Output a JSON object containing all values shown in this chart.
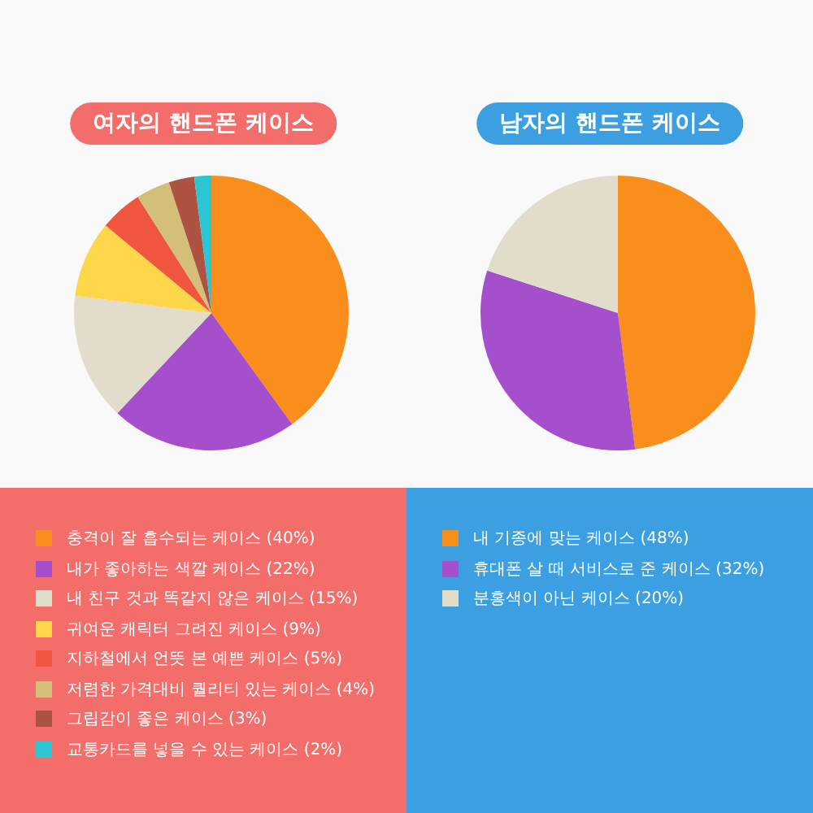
{
  "chart_data": [
    {
      "type": "pie",
      "title": "여자의 핸드폰 케이스",
      "legend": "bottom",
      "categories": [
        "충격이 잘 흡수되는 케이스 (40%)",
        "내가 좋아하는 색깔 케이스 (22%)",
        "내 친구 것과 똑같지 않은 케이스 (15%)",
        "귀여운 캐릭터 그려진 케이스 (9%)",
        "지하철에서 언뜻 본 예쁜 케이스 (5%)",
        "저렴한 가격대비 퀄리티 있는 케이스 (4%)",
        "그립감이 좋은 케이스 (3%)",
        "교통카드를 넣을 수 있는 케이스 (2%)"
      ],
      "values": [
        40,
        22,
        15,
        9,
        5,
        4,
        3,
        2
      ],
      "colors": [
        "#f98e1d",
        "#a64fcc",
        "#e2ddcb",
        "#fdd64a",
        "#f0553d",
        "#d3bf78",
        "#ad5341",
        "#2cc5d3"
      ]
    },
    {
      "type": "pie",
      "title": "남자의 핸드폰 케이스",
      "legend": "bottom",
      "categories": [
        "내 기종에 맞는 케이스 (48%)",
        "휴대폰 살 때 서비스로 준 케이스 (32%)",
        "분홍색이 아닌 케이스 (20%)"
      ],
      "values": [
        48,
        32,
        20
      ],
      "colors": [
        "#f98e1d",
        "#a64fcc",
        "#e2ddcb"
      ]
    }
  ]
}
